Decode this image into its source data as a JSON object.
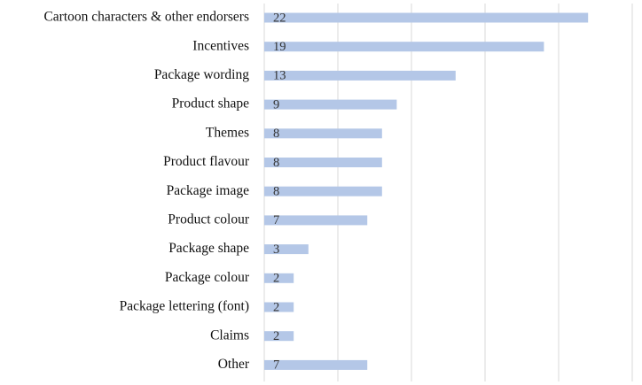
{
  "chart_data": {
    "type": "bar",
    "orientation": "horizontal",
    "categories": [
      "Cartoon characters & other endorsers",
      "Incentives",
      "Package wording",
      "Product shape",
      "Themes",
      "Product flavour",
      "Package image",
      "Product colour",
      "Package shape",
      "Package colour",
      "Package lettering (font)",
      "Claims",
      "Other"
    ],
    "values": [
      22,
      19,
      13,
      9,
      8,
      8,
      8,
      7,
      3,
      2,
      2,
      2,
      7
    ],
    "xlim": [
      0,
      25
    ],
    "grid": true,
    "bar_color": "#b4c7e7",
    "data_labels": true
  }
}
